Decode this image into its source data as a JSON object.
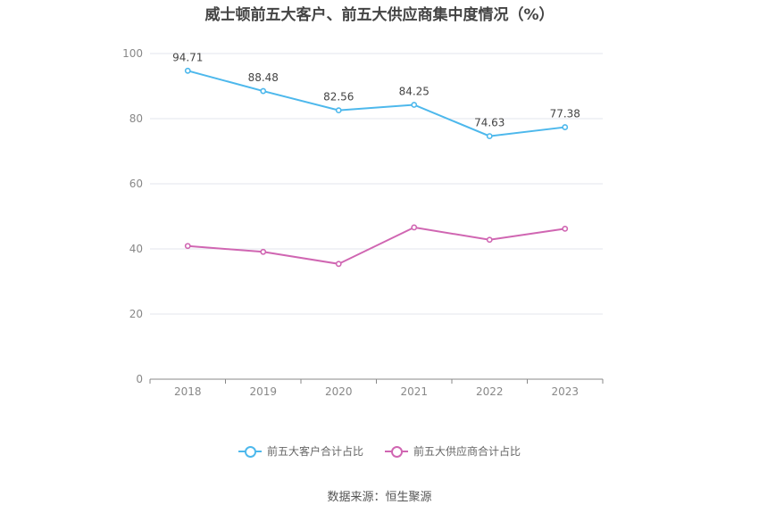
{
  "chart_data": {
    "type": "line",
    "title": "威士顿前五大客户、前五大供应商集中度情况（%）",
    "categories": [
      "2018",
      "2019",
      "2020",
      "2021",
      "2022",
      "2023"
    ],
    "ylim": [
      0,
      100
    ],
    "yticks": [
      "0",
      "20",
      "40",
      "60",
      "80",
      "100"
    ],
    "grid": true,
    "legend_position": "bottom",
    "series": [
      {
        "name": "前五大客户合计占比",
        "color": "#4db8ec",
        "values": [
          94.71,
          88.48,
          82.56,
          84.25,
          74.63,
          77.38
        ],
        "labels": [
          "94.71",
          "88.48",
          "82.56",
          "84.25",
          "74.63",
          "77.38"
        ]
      },
      {
        "name": "前五大供应商合计占比",
        "color": "#d066b2",
        "values": [
          40.9,
          39.1,
          35.4,
          46.6,
          42.8,
          46.2
        ]
      }
    ]
  },
  "source": "数据来源：恒生聚源"
}
